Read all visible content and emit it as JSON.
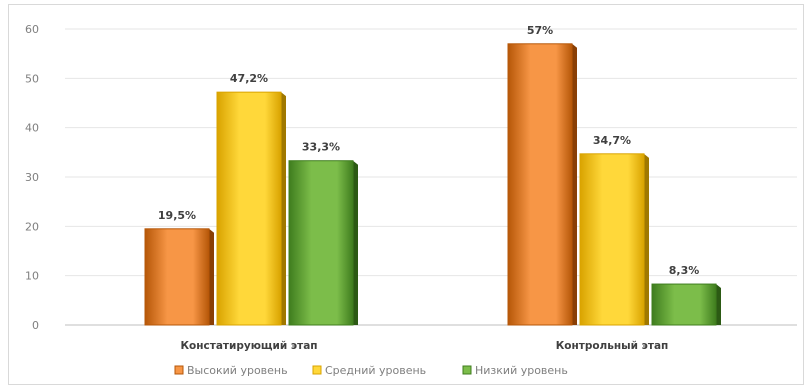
{
  "chart_data": {
    "type": "bar",
    "categories": [
      "Констатирующий этап",
      "Контрольный этап"
    ],
    "series": [
      {
        "name": "Высокий уровень",
        "values": [
          19.5,
          57
        ],
        "labels": [
          "19,5%",
          "57%"
        ]
      },
      {
        "name": "Средний уровень",
        "values": [
          47.2,
          34.7
        ],
        "labels": [
          "47,2%",
          "34,7%"
        ]
      },
      {
        "name": "Низкий уровень",
        "values": [
          33.3,
          8.3
        ],
        "labels": [
          "33,3%",
          "8,3%"
        ]
      }
    ],
    "ylim": [
      0,
      60
    ],
    "yticks": [
      0,
      10,
      20,
      30,
      40,
      50,
      60
    ],
    "grid": true,
    "legend_position": "bottom",
    "colors": {
      "Высокий уровень": {
        "light": "#f79646",
        "dark": "#b65708",
        "side": "#8a3f05"
      },
      "Средний уровень": {
        "light": "#ffd83a",
        "dark": "#d9a300",
        "side": "#a07800"
      },
      "Низкий уровень": {
        "light": "#7cbd4a",
        "dark": "#3f7d1e",
        "side": "#2c5a14"
      }
    }
  }
}
